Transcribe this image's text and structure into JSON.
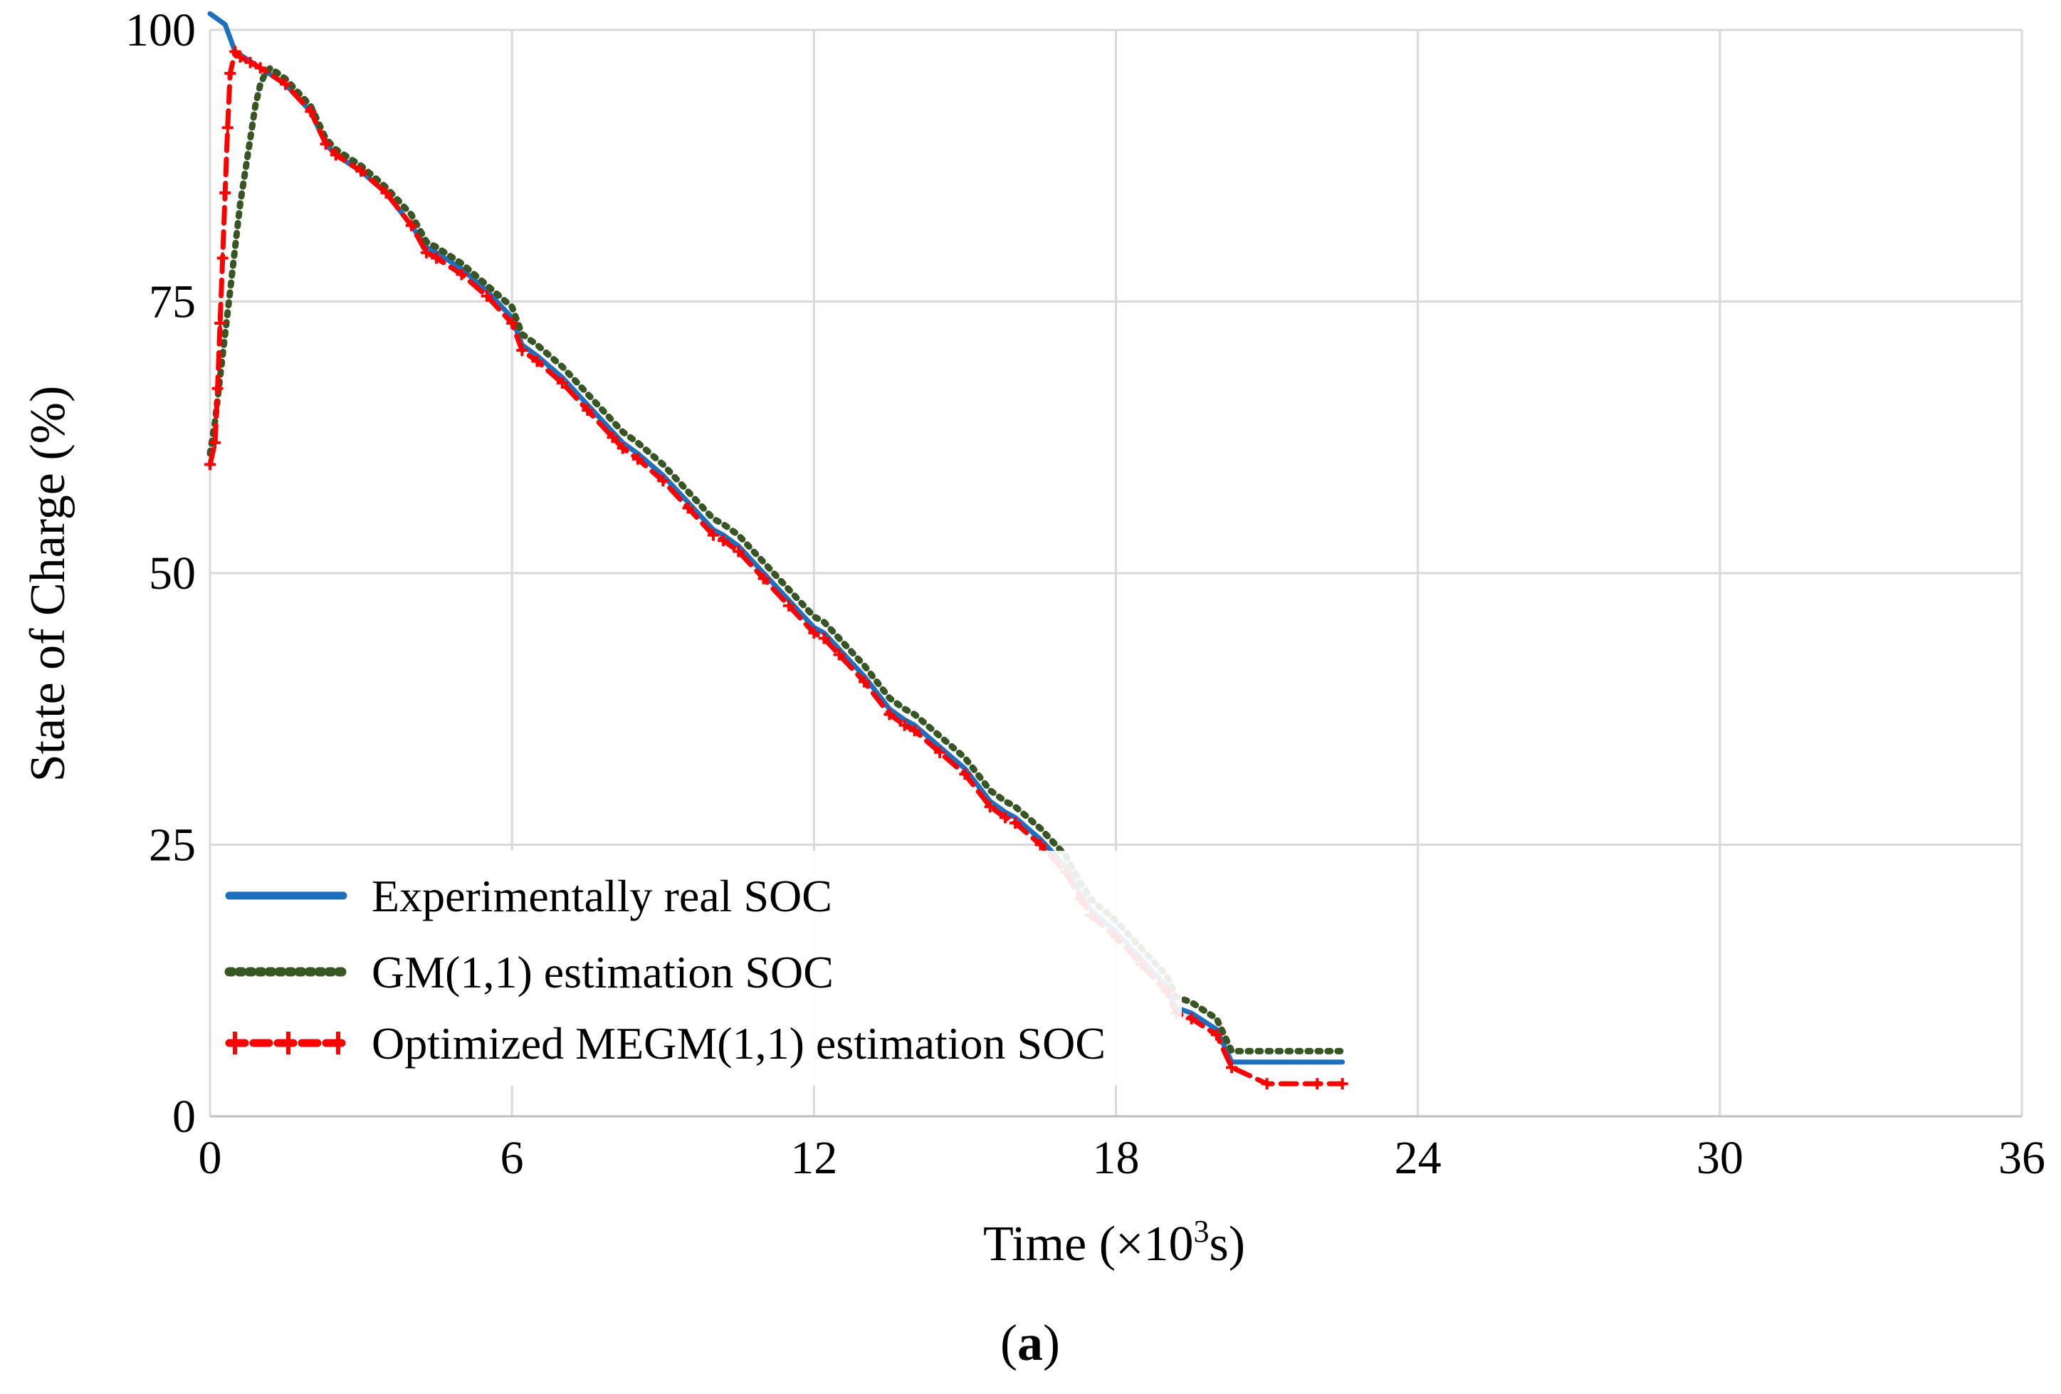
{
  "chart_data": {
    "type": "line",
    "xlabel_main": "Time (×10",
    "xlabel_sup": "3",
    "xlabel_tail": "s)",
    "ylabel": "State of Charge (%)",
    "caption_open": "(",
    "caption_letter": "a",
    "caption_close": ")",
    "xlim": [
      0,
      36
    ],
    "ylim": [
      0,
      100
    ],
    "xticks": [
      0,
      6,
      12,
      18,
      24,
      30,
      36
    ],
    "xtick_labels": [
      "0",
      "6",
      "12",
      "18",
      "24",
      "30",
      "36"
    ],
    "yticks": [
      0,
      25,
      50,
      75,
      100
    ],
    "ytick_labels": [
      "0",
      "25",
      "50",
      "75",
      "100"
    ],
    "grid": true,
    "legend_position": "bottom-left",
    "series": [
      {
        "name": "Experimentally real SOC",
        "color": "#1f6fc0",
        "style": "solid",
        "x": [
          0,
          0.3,
          0.5,
          1.0,
          1.5,
          2.0,
          2.3,
          2.5,
          3.0,
          3.5,
          4.0,
          4.3,
          4.5,
          5.0,
          5.5,
          6.0,
          6.2,
          6.5,
          7.0,
          7.5,
          8.0,
          8.2,
          8.5,
          9.0,
          9.5,
          10.0,
          10.2,
          10.5,
          11.0,
          11.5,
          12.0,
          12.2,
          12.5,
          13.0,
          13.5,
          13.8,
          14.0,
          14.5,
          15.0,
          15.5,
          15.8,
          16.0,
          16.5,
          17.0,
          17.3,
          17.5,
          18.0,
          18.5,
          19.0,
          19.2,
          19.5,
          20.0,
          20.3,
          21.0,
          22.0,
          22.5
        ],
        "y": [
          101.5,
          100.5,
          98,
          96.5,
          95,
          92.5,
          89.5,
          88.5,
          87,
          85,
          82,
          80,
          79.5,
          78,
          76,
          73.5,
          71,
          70,
          68,
          65.5,
          63,
          62,
          61,
          59,
          56.5,
          54,
          53.5,
          52.5,
          50,
          47.5,
          45,
          44.5,
          43,
          40.5,
          37.5,
          36.5,
          36,
          34,
          32,
          29,
          28,
          27.5,
          25.5,
          23,
          20.5,
          19,
          17,
          14.5,
          12,
          10,
          9.5,
          8,
          5,
          5,
          5,
          5
        ]
      },
      {
        "name": "GM(1,1) estimation SOC",
        "color": "#375623",
        "style": "dotted",
        "x": [
          0,
          0.1,
          0.2,
          0.3,
          0.4,
          0.5,
          0.6,
          0.7,
          0.8,
          0.9,
          1.0,
          1.1,
          1.2,
          1.5,
          2.0,
          2.3,
          2.5,
          3.0,
          3.5,
          4.0,
          4.3,
          4.5,
          5.0,
          5.5,
          6.0,
          6.2,
          6.5,
          7.0,
          7.5,
          8.0,
          8.2,
          8.5,
          9.0,
          9.5,
          10.0,
          10.2,
          10.5,
          11.0,
          11.5,
          12.0,
          12.2,
          12.5,
          13.0,
          13.5,
          13.8,
          14.0,
          14.5,
          15.0,
          15.5,
          15.8,
          16.0,
          16.5,
          17.0,
          17.3,
          17.5,
          18.0,
          18.5,
          19.0,
          19.2,
          19.5,
          20.0,
          20.3,
          21.0,
          22.0,
          22.5
        ],
        "y": [
          61,
          64,
          68,
          72,
          76,
          80,
          84,
          87,
          90,
          93,
          95,
          96,
          96.5,
          95.5,
          93,
          90,
          89,
          87.5,
          85.5,
          83,
          80.5,
          80,
          78.5,
          76.5,
          74.5,
          72,
          71,
          69,
          66.5,
          64,
          63,
          62,
          60,
          57.5,
          55,
          54.5,
          53.5,
          51,
          48.5,
          46,
          45.5,
          44,
          41.5,
          38.5,
          37.5,
          37,
          35,
          33,
          30,
          29,
          28.5,
          26.5,
          24,
          21.5,
          20,
          18,
          15.5,
          13,
          11,
          10.5,
          9,
          6,
          6,
          6,
          6
        ]
      },
      {
        "name": "Optimized MEGM(1,1) estimation SOC",
        "color": "#ff0000",
        "style": "dashed-plus",
        "x": [
          0,
          0.1,
          0.15,
          0.2,
          0.25,
          0.3,
          0.35,
          0.4,
          0.5,
          0.6,
          0.8,
          1.0,
          1.5,
          2.0,
          2.3,
          2.5,
          3.0,
          3.5,
          4.0,
          4.3,
          4.5,
          5.0,
          5.5,
          6.0,
          6.2,
          6.5,
          7.0,
          7.5,
          8.0,
          8.2,
          8.5,
          9.0,
          9.5,
          10.0,
          10.2,
          10.5,
          11.0,
          11.5,
          12.0,
          12.2,
          12.5,
          13.0,
          13.5,
          13.8,
          14.0,
          14.5,
          15.0,
          15.5,
          15.8,
          16.0,
          16.5,
          17.0,
          17.3,
          17.5,
          18.0,
          18.5,
          19.0,
          19.2,
          19.5,
          20.0,
          20.3,
          21.0,
          22.0,
          22.5
        ],
        "y": [
          60,
          62,
          67,
          73,
          79,
          85,
          91,
          96,
          98,
          97.5,
          97,
          96.5,
          95,
          92.5,
          89.5,
          88.5,
          87,
          85,
          82,
          79.5,
          79,
          77.5,
          75.5,
          73,
          70.5,
          69.5,
          67.5,
          65,
          62.5,
          61.5,
          60.5,
          58.5,
          56,
          53.5,
          53,
          52,
          49.5,
          47,
          44.5,
          44,
          42.5,
          40,
          37,
          36,
          35.5,
          33.5,
          31.5,
          28.5,
          27.5,
          27,
          25,
          22.5,
          20,
          18.5,
          16.5,
          14,
          11.5,
          9.5,
          9,
          7.5,
          4.5,
          3,
          3,
          3
        ]
      }
    ]
  }
}
